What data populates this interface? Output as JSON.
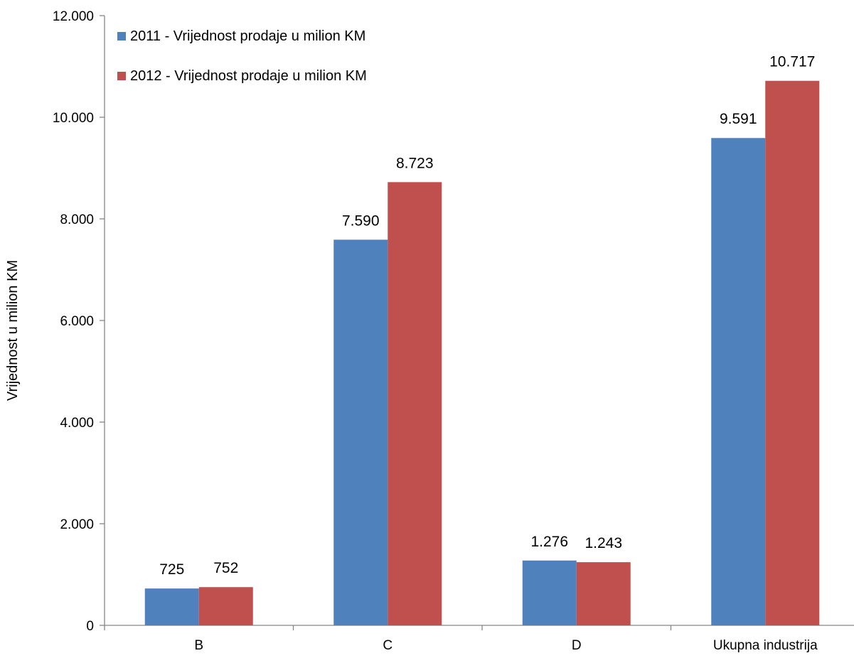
{
  "chart_data": {
    "type": "bar",
    "categories": [
      "B",
      "C",
      "D",
      "Ukupna industrija"
    ],
    "series": [
      {
        "name": "2011 - Vrijednost prodaje u milion KM",
        "values": [
          725,
          7590,
          1276,
          9591
        ],
        "labels": [
          "725",
          "7.590",
          "1.276",
          "9.591"
        ],
        "color": "#4F81BD"
      },
      {
        "name": "2012 - Vrijednost prodaje u milion KM",
        "values": [
          752,
          8723,
          1243,
          10717
        ],
        "labels": [
          "752",
          "8.723",
          "1.243",
          "10.717"
        ],
        "color": "#C0504D"
      }
    ],
    "ylabel": "Vrijednost u milion KM",
    "xlabel": "",
    "ylim": [
      0,
      12000
    ],
    "yticks": [
      0,
      2000,
      4000,
      6000,
      8000,
      10000,
      12000
    ],
    "ytick_labels": [
      "0",
      "2.000",
      "4.000",
      "6.000",
      "8.000",
      "10.000",
      "12.000"
    ],
    "grid": false,
    "legend_position": "top-left"
  }
}
